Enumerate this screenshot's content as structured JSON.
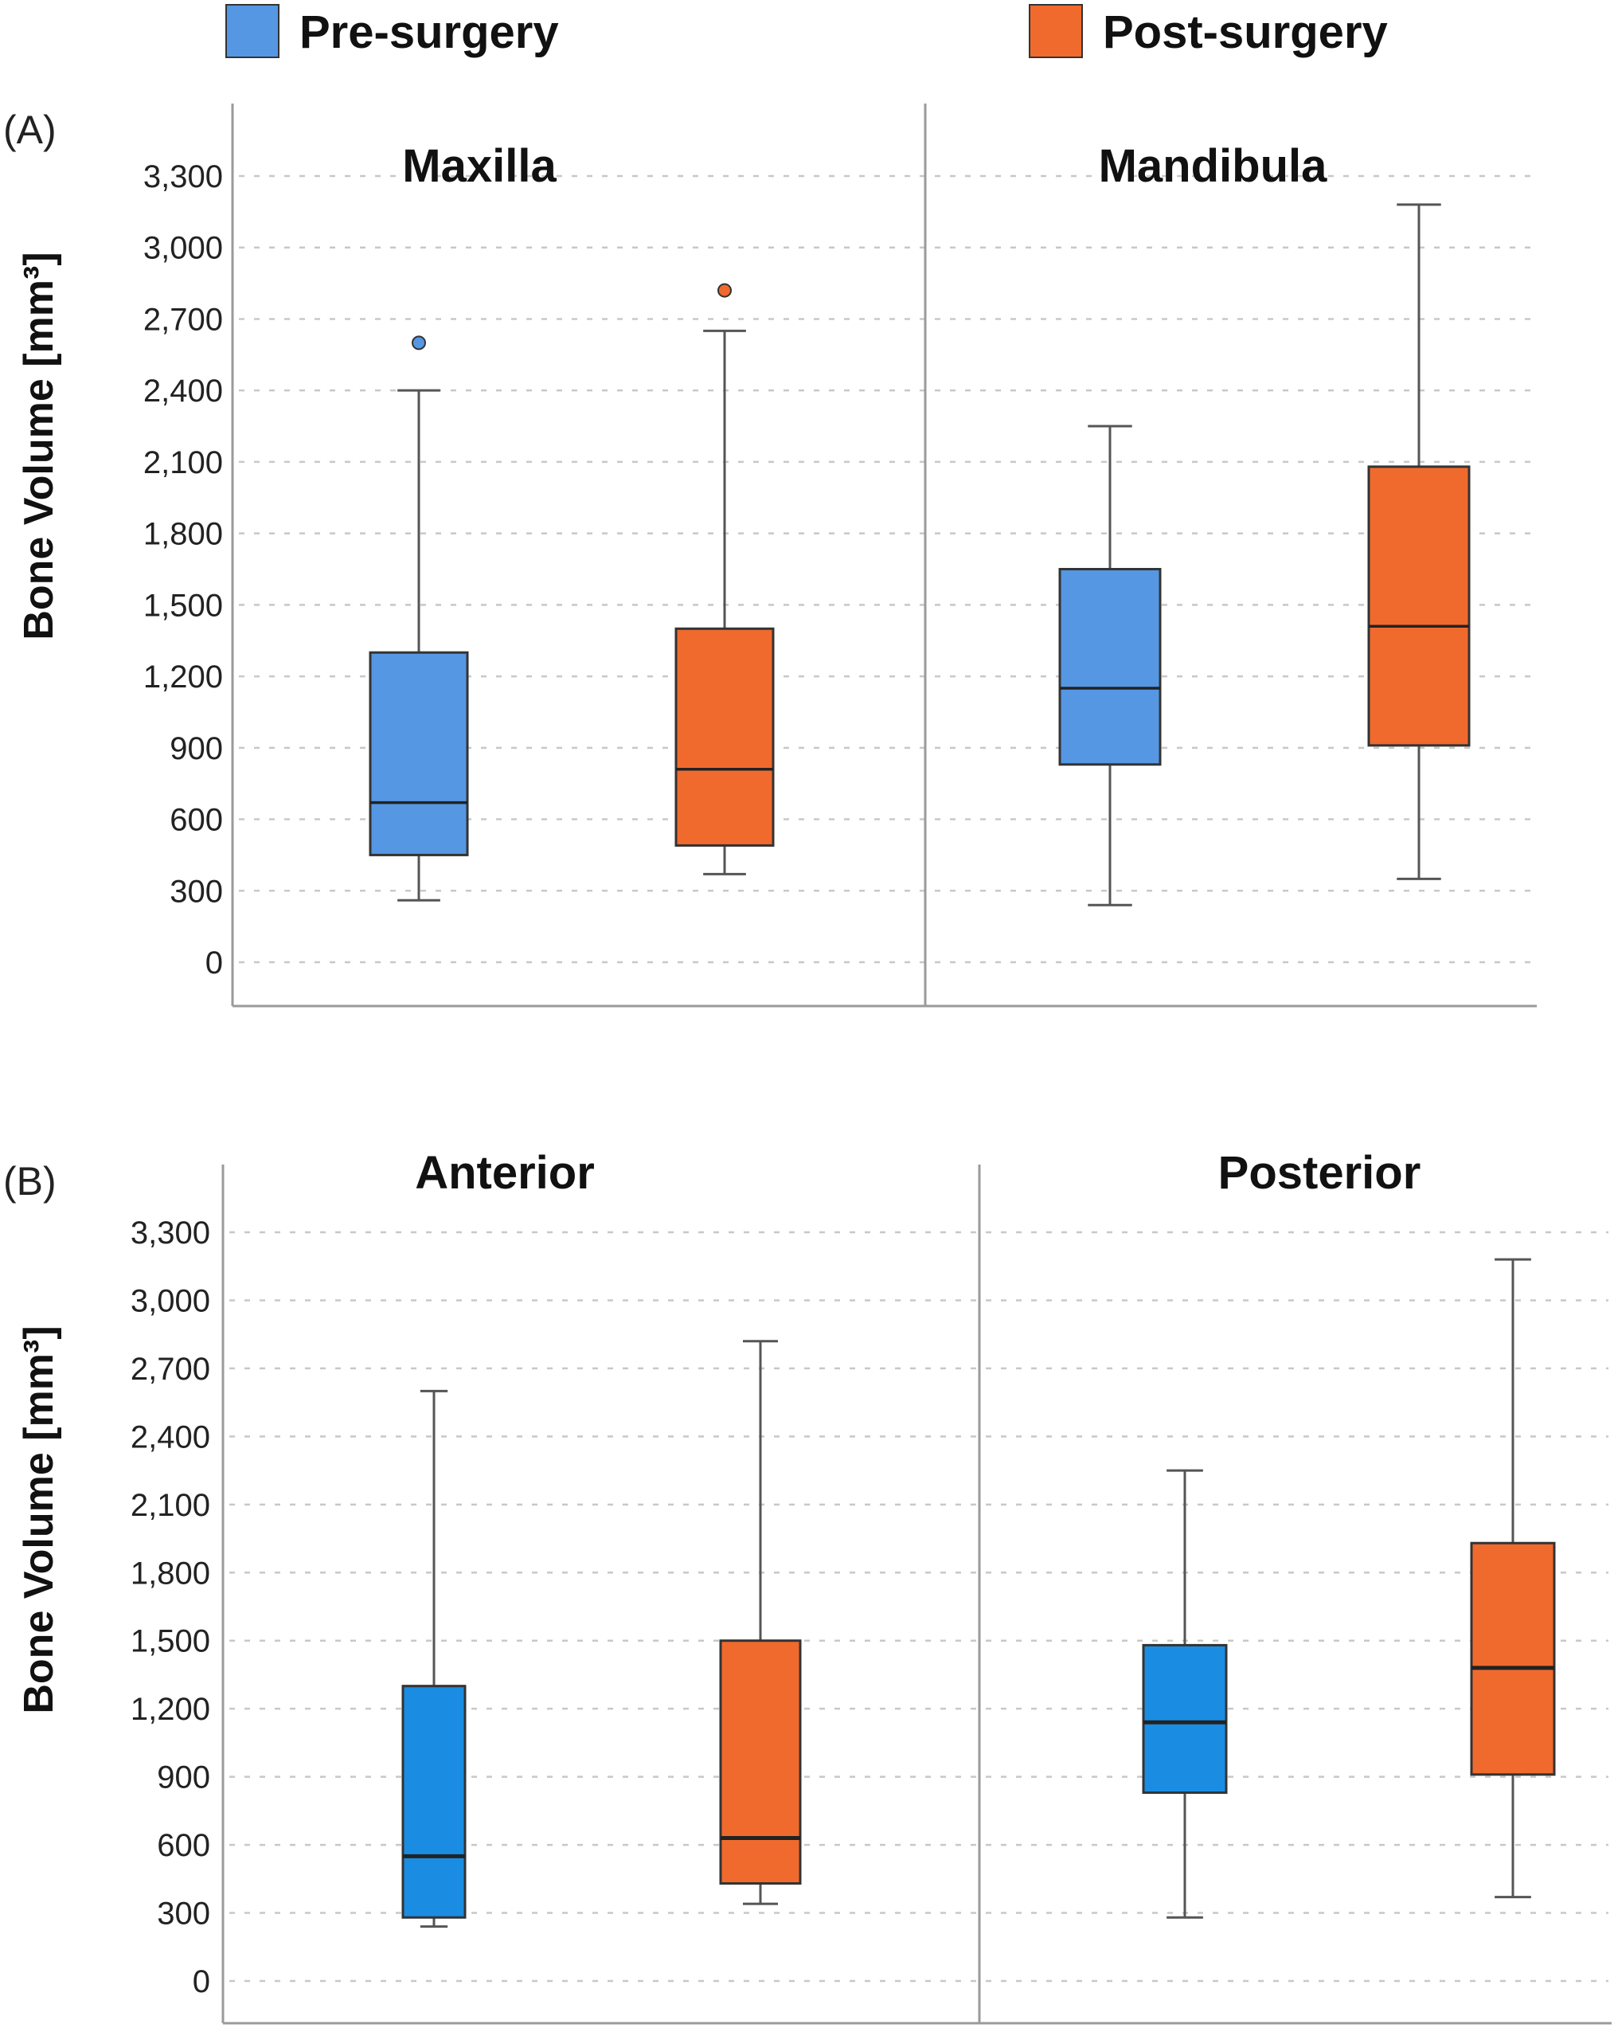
{
  "legend": {
    "items": [
      {
        "label": "Pre-surgery",
        "color": "#5597e3"
      },
      {
        "label": "Post-surgery",
        "color": "#f06a2d"
      }
    ]
  },
  "chart_data": [
    {
      "type": "box",
      "panel_label": "(A)",
      "ylabel": "Bone Volume [mm³]",
      "ylim": [
        -150,
        3650
      ],
      "yticks": [
        "0",
        "300",
        "600",
        "900",
        "1,200",
        "1,500",
        "1,800",
        "2,100",
        "2,400",
        "2,700",
        "3,000",
        "3,300"
      ],
      "grid": true,
      "legend_position": "top",
      "facets": [
        {
          "title": "Maxilla",
          "boxes": [
            {
              "series": "Pre-surgery",
              "color": "#5597e3",
              "whisker_low": 260,
              "q1": 450,
              "median": 670,
              "q3": 1300,
              "whisker_high": 2400,
              "outliers": [
                2600
              ]
            },
            {
              "series": "Post-surgery",
              "color": "#f06a2d",
              "whisker_low": 370,
              "q1": 490,
              "median": 810,
              "q3": 1400,
              "whisker_high": 2650,
              "outliers": [
                2820
              ]
            }
          ]
        },
        {
          "title": "Mandibula",
          "boxes": [
            {
              "series": "Pre-surgery",
              "color": "#5597e3",
              "whisker_low": 240,
              "q1": 830,
              "median": 1150,
              "q3": 1650,
              "whisker_high": 2250,
              "outliers": []
            },
            {
              "series": "Post-surgery",
              "color": "#f06a2d",
              "whisker_low": 350,
              "q1": 910,
              "median": 1410,
              "q3": 2080,
              "whisker_high": 3180,
              "outliers": []
            }
          ]
        }
      ]
    },
    {
      "type": "box",
      "panel_label": "(B)",
      "ylabel": "Bone Volume [mm³]",
      "ylim": [
        -150,
        3650
      ],
      "yticks": [
        "0",
        "300",
        "600",
        "900",
        "1,200",
        "1,500",
        "1,800",
        "2,100",
        "2,400",
        "2,700",
        "3,000",
        "3,300"
      ],
      "grid": true,
      "facets": [
        {
          "title": "Anterior",
          "boxes": [
            {
              "series": "Pre-surgery",
              "color": "#1a8de3",
              "whisker_low": 240,
              "q1": 280,
              "median": 550,
              "q3": 1300,
              "whisker_high": 2600,
              "outliers": []
            },
            {
              "series": "Post-surgery",
              "color": "#f06a2d",
              "whisker_low": 340,
              "q1": 430,
              "median": 630,
              "q3": 1500,
              "whisker_high": 2820,
              "outliers": []
            }
          ]
        },
        {
          "title": "Posterior",
          "boxes": [
            {
              "series": "Pre-surgery",
              "color": "#1a8de3",
              "whisker_low": 280,
              "q1": 830,
              "median": 1140,
              "q3": 1480,
              "whisker_high": 2250,
              "outliers": []
            },
            {
              "series": "Post-surgery",
              "color": "#f06a2d",
              "whisker_low": 370,
              "q1": 910,
              "median": 1380,
              "q3": 1930,
              "whisker_high": 3180,
              "outliers": []
            }
          ]
        }
      ]
    }
  ]
}
